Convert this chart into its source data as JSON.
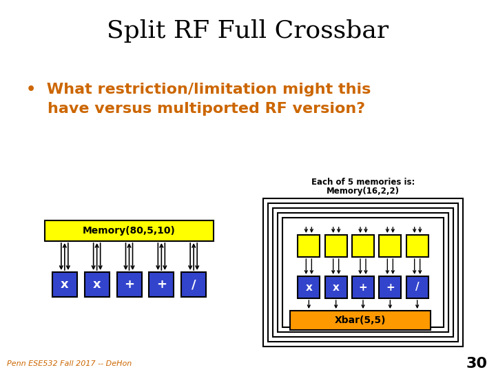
{
  "title": "Split RF Full Crossbar",
  "bullet_line1": "•  What restriction/limitation might this",
  "bullet_line2": "    have versus multiported RF version?",
  "bullet_color": "#CC6600",
  "title_color": "#000000",
  "bg_color": "#FFFFFF",
  "footer_text": "Penn ESE532 Fall 2017 -- DeHon",
  "footer_color": "#CC6600",
  "page_num": "30",
  "left_label": "Memory(80,5,10)",
  "right_top_label1": "Each of 5 memories is:",
  "right_top_label2": "Memory(16,2,2)",
  "right_bottom_label": "Xbar(5,5)",
  "fu_symbols": [
    "x",
    "x",
    "+",
    "+",
    "/"
  ],
  "yellow_color": "#FFFF00",
  "blue_color": "#3344CC",
  "orange_color": "#FF9900",
  "white_color": "#FFFFFF",
  "black_color": "#000000"
}
